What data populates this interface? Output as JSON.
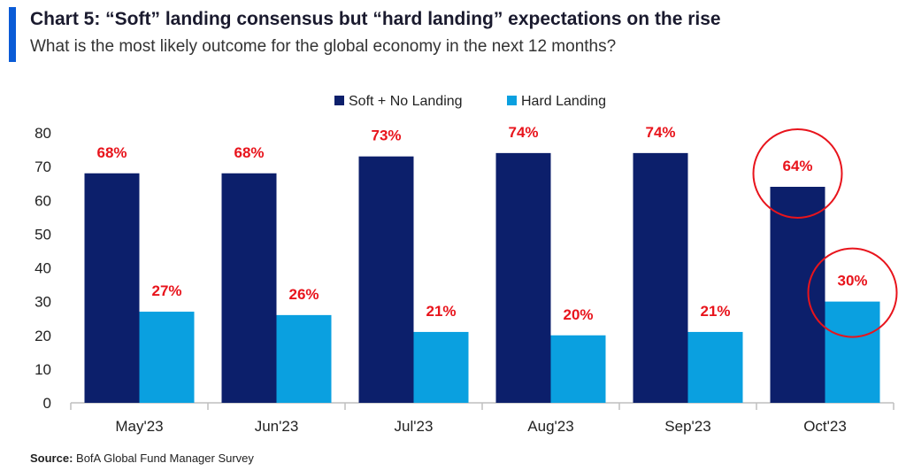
{
  "header": {
    "title": "Chart 5: “Soft” landing consensus but “hard landing” expectations on the rise",
    "subtitle": "What is the most likely outcome for the global economy in the next 12 months?"
  },
  "footer": {
    "source_label": "Source:",
    "source_text": " BofA Global Fund Manager Survey"
  },
  "colors": {
    "accent": "#0a5bd6",
    "soft": "#0c1f6b",
    "hard": "#0aa0e0",
    "label": "#e8141c",
    "highlight_circle": "#e8141c"
  },
  "chart_data": {
    "type": "bar",
    "title": "“Soft” landing consensus but “hard landing” expectations on the rise",
    "xlabel": "",
    "ylabel": "",
    "ylim": [
      0,
      80
    ],
    "yticks": [
      0,
      10,
      20,
      30,
      40,
      50,
      60,
      70,
      80
    ],
    "categories": [
      "May'23",
      "Jun'23",
      "Jul'23",
      "Aug'23",
      "Sep'23",
      "Oct'23"
    ],
    "series": [
      {
        "name": "Soft + No Landing",
        "values": [
          68,
          68,
          73,
          74,
          74,
          64
        ],
        "labels": [
          "68%",
          "68%",
          "73%",
          "74%",
          "74%",
          "64%"
        ]
      },
      {
        "name": "Hard Landing",
        "values": [
          27,
          26,
          21,
          20,
          21,
          30
        ],
        "labels": [
          "27%",
          "26%",
          "21%",
          "20%",
          "21%",
          "30%"
        ]
      }
    ],
    "legend_position": "top-center",
    "highlighted": [
      "Oct'23"
    ]
  }
}
